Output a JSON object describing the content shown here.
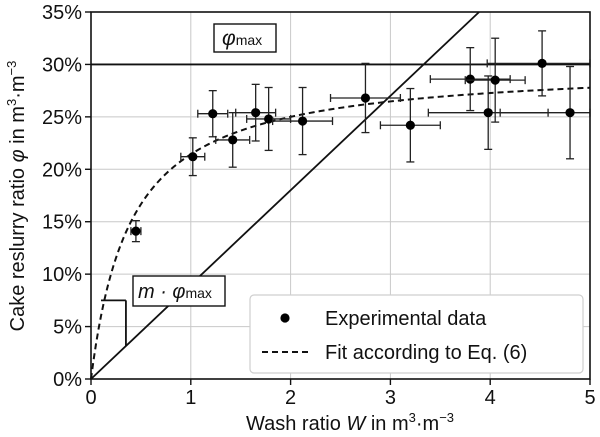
{
  "chart_data": {
    "type": "scatter",
    "xlabel_parts": [
      "Wash ratio ",
      "W",
      " in m",
      "3",
      "·m",
      "−3"
    ],
    "ylabel_parts": [
      "Cake reslurry ratio ",
      "φ",
      " in m",
      "3",
      "·m",
      "−3"
    ],
    "xlim": [
      0,
      5
    ],
    "ylim": [
      0,
      35
    ],
    "x_ticks": [
      "0",
      "1",
      "2",
      "3",
      "4",
      "5"
    ],
    "y_ticks": [
      "0%",
      "5%",
      "10%",
      "15%",
      "20%",
      "25%",
      "30%",
      "35%"
    ],
    "grid": true,
    "legend_position": "bottom-right",
    "legend": {
      "data_label": "Experimental data",
      "fit_label": "Fit according to Eq. (6)"
    },
    "annotations": {
      "phi_max_symbol": "φ",
      "phi_max_sub": "max",
      "slope_text": "m · φ",
      "slope_sub": "max"
    },
    "phi_max": 30,
    "initial_slope_m": 9,
    "fit_half_saturation": 0.4,
    "series": [
      {
        "name": "Experimental data",
        "type": "scatter",
        "points": [
          {
            "x": 0.45,
            "y": 14.1,
            "xerr": 0.05,
            "yerr": 1.0
          },
          {
            "x": 1.02,
            "y": 21.2,
            "xerr": 0.12,
            "yerr": 1.8
          },
          {
            "x": 1.22,
            "y": 25.3,
            "xerr": 0.15,
            "yerr": 2.2
          },
          {
            "x": 1.42,
            "y": 22.8,
            "xerr": 0.17,
            "yerr": 2.6
          },
          {
            "x": 1.65,
            "y": 25.4,
            "xerr": 0.2,
            "yerr": 2.7
          },
          {
            "x": 1.78,
            "y": 24.8,
            "xerr": 0.22,
            "yerr": 3.0
          },
          {
            "x": 2.12,
            "y": 24.6,
            "xerr": 0.3,
            "yerr": 3.2
          },
          {
            "x": 2.75,
            "y": 26.8,
            "xerr": 0.35,
            "yerr": 3.3
          },
          {
            "x": 3.2,
            "y": 24.2,
            "xerr": 0.3,
            "yerr": 3.5
          },
          {
            "x": 3.8,
            "y": 28.6,
            "xerr": 0.4,
            "yerr": 3.0
          },
          {
            "x": 3.98,
            "y": 25.4,
            "xerr": 0.6,
            "yerr": 3.5
          },
          {
            "x": 4.05,
            "y": 28.5,
            "xerr": 0.3,
            "yerr": 4.0
          },
          {
            "x": 4.52,
            "y": 30.1,
            "xerr": 0.55,
            "yerr": 3.1
          },
          {
            "x": 4.8,
            "y": 25.4,
            "xerr": 0.7,
            "yerr": 4.4
          }
        ]
      },
      {
        "name": "Fit according to Eq. (6)",
        "type": "line",
        "style": "dashed"
      }
    ]
  }
}
